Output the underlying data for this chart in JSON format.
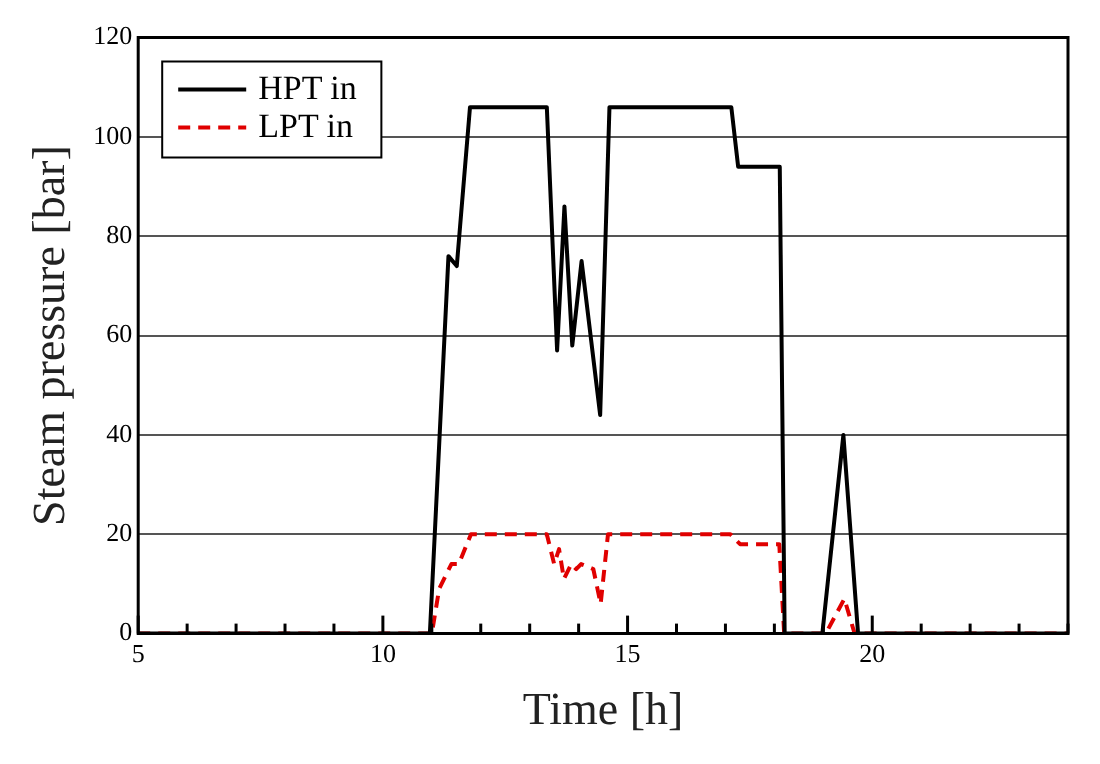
{
  "chart_data": {
    "type": "line",
    "xlabel": "Time [h]",
    "ylabel": "Steam pressure [bar]",
    "xlim": [
      5,
      24
    ],
    "xticks": [
      5,
      {
        "value": 6,
        "label": null
      },
      {
        "value": 7,
        "label": null
      },
      {
        "value": 8,
        "label": null
      },
      {
        "value": 9,
        "label": null
      },
      10,
      {
        "value": 11,
        "label": null
      },
      {
        "value": 12,
        "label": null
      },
      {
        "value": 13,
        "label": null
      },
      {
        "value": 14,
        "label": null
      },
      15,
      {
        "value": 16,
        "label": null
      },
      {
        "value": 17,
        "label": null
      },
      {
        "value": 18,
        "label": null
      },
      {
        "value": 19,
        "label": null
      },
      20,
      {
        "value": 21,
        "label": null
      },
      {
        "value": 22,
        "label": null
      },
      {
        "value": 23,
        "label": null
      },
      {
        "value": 24,
        "label": null
      }
    ],
    "ylim": [
      0,
      120
    ],
    "yticks": [
      0,
      20,
      40,
      60,
      80,
      100,
      120
    ],
    "grid": "y",
    "legend": "top left",
    "marker": "none",
    "series": [
      {
        "name": "HPT in",
        "color": "#000000",
        "line_style": "solid",
        "x": [
          5,
          10.96,
          11.34,
          11.51,
          11.78,
          13.35,
          13.56,
          13.71,
          13.87,
          14.06,
          14.44,
          14.63,
          17.12,
          17.26,
          18.11,
          18.21,
          18.98,
          19.41,
          19.71,
          24
        ],
        "values": [
          0,
          0,
          76,
          74,
          106,
          106,
          57,
          86,
          58,
          75,
          44,
          106,
          106,
          94,
          94,
          0,
          0,
          40,
          0,
          0
        ]
      },
      {
        "name": "LPT in",
        "color": "#e00000",
        "line_style": "dashed",
        "x": [
          5,
          11,
          11.15,
          11.4,
          11.55,
          11.8,
          13.35,
          13.5,
          13.6,
          13.7,
          13.85,
          13.95,
          14.05,
          14.3,
          14.45,
          14.6,
          17.1,
          17.3,
          18.1,
          18.2,
          19.05,
          19.43,
          19.64,
          24
        ],
        "values": [
          0,
          0,
          9,
          14,
          14,
          20,
          20,
          14,
          17,
          11,
          14,
          13,
          14,
          13,
          6,
          20,
          20,
          18,
          18,
          0,
          0,
          7,
          0,
          0
        ]
      }
    ]
  }
}
